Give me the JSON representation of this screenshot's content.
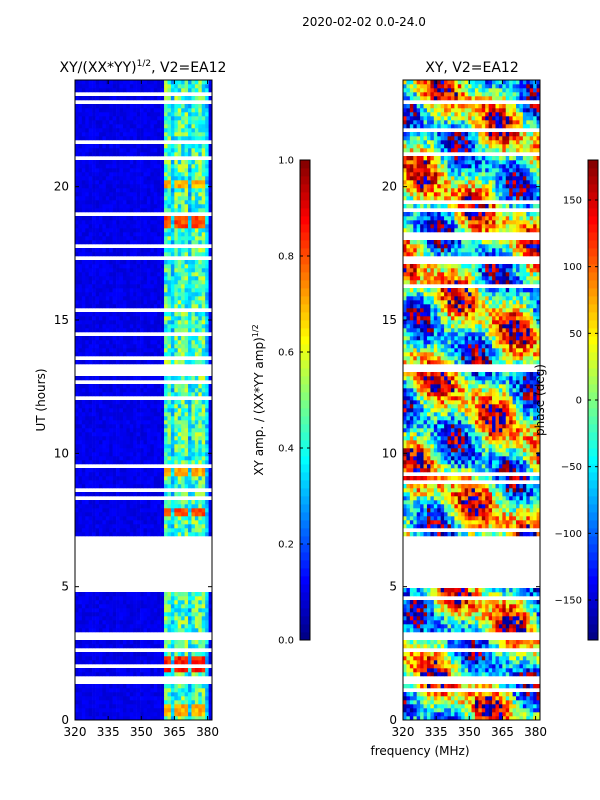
{
  "figure_title": "2020-02-02 0.0-24.0",
  "shared_xlabel": "frequency (MHz)",
  "chart_data": [
    {
      "type": "heatmap",
      "title": "XY/(XX*YY)",
      "title_exponent": "1/2",
      "title_suffix": ", V2=EA12",
      "xlabel": "",
      "ylabel": "UT (hours)",
      "xlim": [
        320,
        382
      ],
      "ylim": [
        0,
        24
      ],
      "xticks": [
        320,
        335,
        350,
        365,
        380
      ],
      "yticks": [
        0,
        5,
        10,
        15,
        20
      ],
      "colorbar": {
        "label": "XY amp. / (XX*YY amp)",
        "label_exponent": "1/2",
        "range": [
          0.0,
          1.0
        ],
        "ticks": [
          "0.0",
          "0.2",
          "0.4",
          "0.6",
          "0.8",
          "1.0"
        ],
        "tick_values": [
          0.0,
          0.2,
          0.4,
          0.6,
          0.8,
          1.0
        ],
        "colormap": "jet"
      },
      "background_value": 0.08,
      "active_band_mhz": [
        360,
        380
      ],
      "active_channels_mhz": [
        362,
        366,
        370,
        374,
        378
      ],
      "typical_active_value": 0.45,
      "hotspots": [
        {
          "ut": [
            1.8,
            2.4
          ],
          "value": 0.85
        },
        {
          "ut": [
            7.7,
            8.0
          ],
          "value": 0.8
        },
        {
          "ut": [
            9.1,
            9.5
          ],
          "value": 0.7
        },
        {
          "ut": [
            18.4,
            19.0
          ],
          "value": 0.8
        },
        {
          "ut": [
            19.9,
            20.3
          ],
          "value": 0.7
        },
        {
          "ut": [
            0.2,
            0.6
          ],
          "value": 0.7
        }
      ],
      "gaps_ut": [
        [
          4.95,
          6.85
        ],
        [
          13.0,
          13.3
        ],
        [
          17.2,
          17.45
        ],
        [
          3.0,
          3.25
        ],
        [
          1.4,
          1.6
        ],
        [
          23.1,
          23.25
        ],
        [
          2.55,
          2.7
        ]
      ]
    },
    {
      "type": "heatmap",
      "title": "XY, V2=EA12",
      "xlabel": "",
      "ylabel": "",
      "xlim": [
        320,
        382
      ],
      "ylim": [
        0,
        24
      ],
      "xticks": [
        320,
        335,
        350,
        365,
        380
      ],
      "yticks": [
        0,
        5,
        10,
        15,
        20
      ],
      "colorbar": {
        "label": "phase (deg)",
        "range": [
          -180,
          180
        ],
        "ticks": [
          "−150",
          "−100",
          "−50",
          "0",
          "50",
          "100",
          "150"
        ],
        "tick_values": [
          -150,
          -100,
          -50,
          0,
          50,
          100,
          150
        ],
        "colormap": "jet"
      },
      "value_range_deg": [
        -180,
        180
      ],
      "gaps_ut": [
        [
          4.95,
          6.85
        ],
        [
          13.0,
          13.3
        ],
        [
          17.2,
          17.45
        ],
        [
          3.0,
          3.25
        ],
        [
          1.4,
          1.6
        ],
        [
          23.1,
          23.25
        ],
        [
          2.55,
          2.7
        ]
      ]
    }
  ]
}
